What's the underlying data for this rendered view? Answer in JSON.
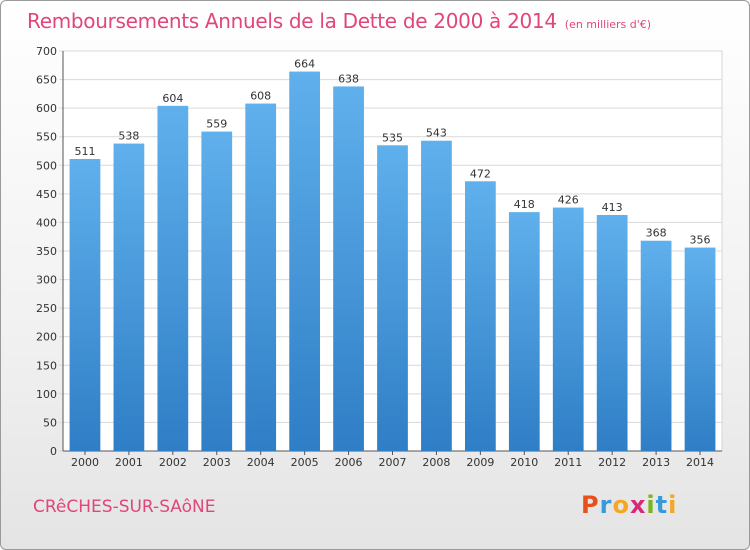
{
  "chart_data": {
    "type": "bar",
    "title": "Remboursements Annuels de la Dette de 2000 à 2014",
    "subtitle": "(en milliers d'€)",
    "categories": [
      "2000",
      "2001",
      "2002",
      "2003",
      "2004",
      "2005",
      "2006",
      "2007",
      "2008",
      "2009",
      "2010",
      "2011",
      "2012",
      "2013",
      "2014"
    ],
    "values": [
      511,
      538,
      604,
      559,
      608,
      664,
      638,
      535,
      543,
      472,
      418,
      426,
      413,
      368,
      356
    ],
    "xlabel": "",
    "ylabel": "",
    "ylim": [
      0,
      700
    ],
    "yticks": [
      0,
      50,
      100,
      150,
      200,
      250,
      300,
      350,
      400,
      450,
      500,
      550,
      600,
      650,
      700
    ],
    "grid": true,
    "bar_color_top": "#5fb0ec",
    "bar_color_bottom": "#2f7ec6"
  },
  "footer": {
    "commune": "CRêCHES-SUR-SAôNE",
    "logo_letters": [
      {
        "ch": "P",
        "color": "#e94f1d"
      },
      {
        "ch": "r",
        "color": "#3a9ad9"
      },
      {
        "ch": "o",
        "color": "#f5a623"
      },
      {
        "ch": "x",
        "color": "#d9287a"
      },
      {
        "ch": "i",
        "color": "#7ab51d"
      },
      {
        "ch": "t",
        "color": "#3a9ad9"
      },
      {
        "ch": "i",
        "color": "#f5a623"
      }
    ]
  }
}
